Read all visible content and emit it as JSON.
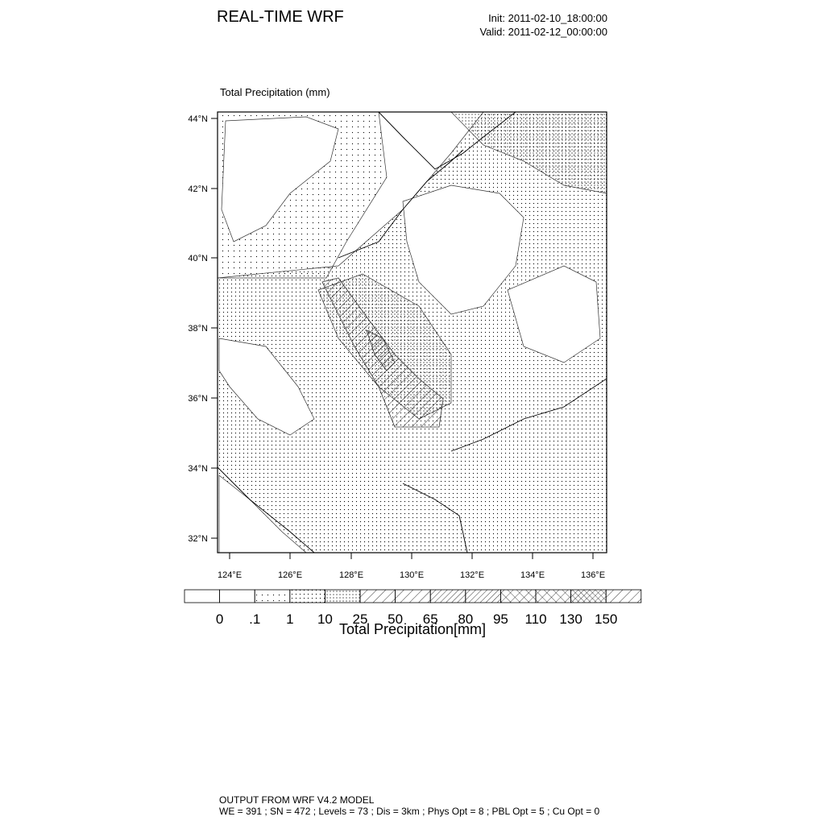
{
  "header": {
    "title": "REAL-TIME WRF",
    "init": "Init: 2011-02-10_18:00:00",
    "valid": "Valid: 2011-02-12_00:00:00"
  },
  "field": {
    "title": "Total Precipitation   (mm)"
  },
  "axes": {
    "lat_labels": [
      "44°N",
      "42°N",
      "40°N",
      "38°N",
      "36°N",
      "34°N",
      "32°N"
    ],
    "lon_labels": [
      "124°E",
      "126°E",
      "128°E",
      "130°E",
      "132°E",
      "134°E",
      "136°E"
    ]
  },
  "colorbar": {
    "levels": [
      "0",
      ".1",
      "1",
      "10",
      "25",
      "50",
      "65",
      "80",
      "95",
      "110",
      "130",
      "150"
    ],
    "patterns": [
      "blank",
      "blank",
      "dots-sparse",
      "dots",
      "dots-dense",
      "hatch",
      "hatch",
      "hatch-dense",
      "hatch-dense",
      "crosshatch",
      "crosshatch",
      "crosshatch-dense",
      "hatch"
    ],
    "title": "Total Precipitation[mm]"
  },
  "footer": {
    "line1": "OUTPUT FROM WRF V4.2 MODEL",
    "line2": "WE = 391 ; SN = 472 ; Levels = 73 ; Dis = 3km ; Phys Opt = 8 ; PBL Opt = 5 ; Cu Opt = 0"
  }
}
